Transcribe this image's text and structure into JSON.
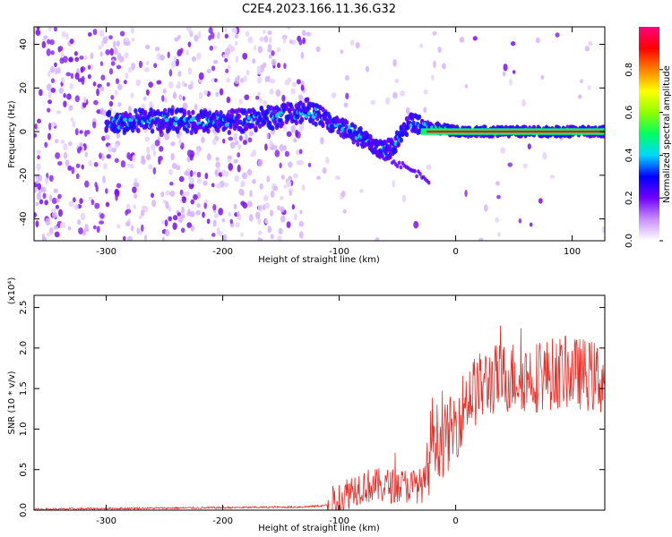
{
  "figure_title": "C2E4.2023.166.11.36.G32",
  "chart_data": [
    {
      "type": "heatmap",
      "xlabel": "Height of straight line (km)",
      "ylabel": "Frequency (Hz)",
      "xlim": [
        -362,
        128
      ],
      "ylim": [
        -50,
        48
      ],
      "xticks": [
        -300,
        -200,
        -100,
        0,
        100
      ],
      "yticks": [
        -40,
        -20,
        0,
        20,
        40
      ],
      "colorbar": {
        "label": "Normalized spectral amplitude",
        "range": [
          0,
          1
        ],
        "ticks": [
          0.0,
          0.2,
          0.4,
          0.6,
          0.8
        ],
        "colors": [
          "#ffffff",
          "#c890ff",
          "#7000ff",
          "#0000ff",
          "#00d8ff",
          "#00ff60",
          "#90ff00",
          "#ffff00",
          "#ff8000",
          "#ff0000",
          "#ff0080"
        ]
      },
      "ridge": {
        "x": [
          -300,
          -270,
          -240,
          -210,
          -180,
          -150,
          -125,
          -110,
          -100,
          -90,
          -80,
          -70,
          -60,
          -50,
          -40,
          -30,
          -20,
          -10,
          0,
          50,
          100,
          128
        ],
        "y": [
          4,
          5,
          5,
          4,
          5,
          7,
          10,
          5,
          2,
          0,
          -3,
          -6,
          -9,
          -4,
          4,
          3,
          2,
          1,
          0,
          0,
          0,
          0
        ]
      }
    },
    {
      "type": "line",
      "xlabel": "Height of straight line (km)",
      "ylabel": "SNR (10 * v/v)",
      "y_multiplier": "(x10⁴)",
      "xlim": [
        -362,
        128
      ],
      "ylim": [
        0,
        2.65
      ],
      "xticks": [
        -300,
        -200,
        -100,
        0
      ],
      "yticks": [
        0.0,
        0.5,
        1.0,
        1.5,
        2.0,
        2.5
      ],
      "color": "#e8302a",
      "trend": {
        "x": [
          -362,
          -300,
          -200,
          -130,
          -110,
          -100,
          -90,
          -80,
          -60,
          -40,
          -30,
          -25,
          -20,
          -15,
          -10,
          0,
          10,
          30,
          50,
          70,
          90,
          110,
          128
        ],
        "y": [
          0.01,
          0.02,
          0.03,
          0.04,
          0.06,
          0.12,
          0.25,
          0.3,
          0.3,
          0.3,
          0.3,
          0.35,
          1.0,
          0.85,
          0.85,
          1.05,
          1.4,
          1.6,
          1.65,
          1.65,
          1.7,
          1.68,
          1.6
        ]
      }
    }
  ]
}
